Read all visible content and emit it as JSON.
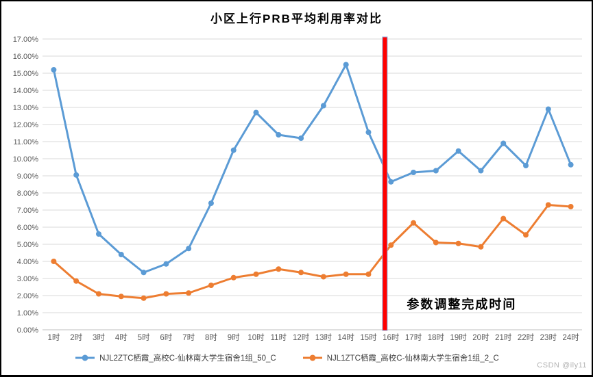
{
  "title": "小区上行PRB平均利用率对比",
  "watermark": "CSDN @ily11",
  "colors": {
    "series_blue": "#5B9BD5",
    "series_orange": "#ED7D31",
    "event_line_red": "#FF0000",
    "gridline": "#D9D9D9",
    "axis_line": "#BFBFBF",
    "tick_text": "#595959",
    "legend_text": "#404040",
    "annotation_text": "#000000"
  },
  "chart_data": {
    "type": "line",
    "title": "小区上行PRB平均利用率对比",
    "xlabel": "",
    "ylabel": "",
    "ylim": [
      0,
      17
    ],
    "grid": true,
    "legend_position": "bottom",
    "categories": [
      "1时",
      "2时",
      "3时",
      "4时",
      "5时",
      "6时",
      "7时",
      "8时",
      "9时",
      "10时",
      "11时",
      "12时",
      "13时",
      "14时",
      "15时",
      "16时",
      "17时",
      "18时",
      "19时",
      "20时",
      "21时",
      "22时",
      "23时",
      "24时"
    ],
    "y_ticks": [
      "17.00%",
      "16.00%",
      "15.00%",
      "14.00%",
      "13.00%",
      "12.00%",
      "11.00%",
      "10.00%",
      "9.00%",
      "8.00%",
      "7.00%",
      "6.00%",
      "5.00%",
      "4.00%",
      "3.00%",
      "2.00%",
      "1.00%",
      "0.00%"
    ],
    "series": [
      {
        "name": "NJL2ZTC栖霞_高校C-仙林南大学生宿舍1组_50_C",
        "color": "#5B9BD5",
        "values": [
          15.2,
          9.05,
          5.6,
          4.4,
          3.35,
          3.85,
          4.75,
          7.4,
          10.5,
          12.7,
          11.4,
          11.2,
          13.1,
          15.5,
          11.55,
          8.65,
          9.2,
          9.3,
          10.45,
          9.3,
          10.9,
          9.6,
          12.9,
          9.65
        ]
      },
      {
        "name": "NJL1ZTC栖霞_高校C-仙林南大学生宿舍1组_2_C",
        "color": "#ED7D31",
        "values": [
          4.0,
          2.85,
          2.1,
          1.95,
          1.85,
          2.1,
          2.15,
          2.6,
          3.05,
          3.25,
          3.55,
          3.35,
          3.1,
          3.25,
          3.25,
          4.95,
          6.25,
          5.1,
          5.05,
          4.85,
          6.5,
          5.55,
          7.3,
          7.2
        ]
      }
    ],
    "event_line": {
      "x_index": 14.73,
      "position_note": "between 15时 and 16时",
      "color": "#FF0000",
      "label": "参数调整完成时间"
    }
  }
}
